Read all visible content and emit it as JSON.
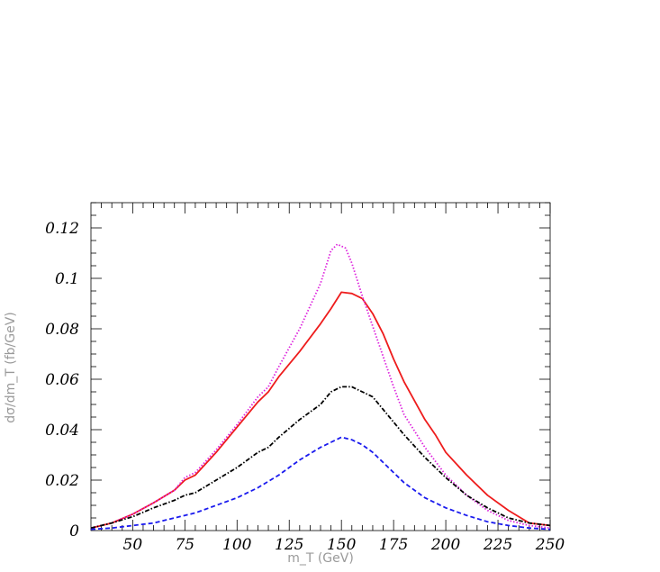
{
  "chart_data": {
    "type": "line",
    "xlabel": "m_T (GeV)",
    "ylabel": "dσ/dm_T (fb/GeV)",
    "xlim": [
      30,
      250
    ],
    "ylim": [
      0,
      0.13
    ],
    "x_ticks": [
      {
        "v": 50,
        "label": "50"
      },
      {
        "v": 75,
        "label": "75"
      },
      {
        "v": 100,
        "label": "100"
      },
      {
        "v": 125,
        "label": "125"
      },
      {
        "v": 150,
        "label": "150"
      },
      {
        "v": 175,
        "label": "175"
      },
      {
        "v": 200,
        "label": "200"
      },
      {
        "v": 225,
        "label": "225"
      },
      {
        "v": 250,
        "label": "250"
      }
    ],
    "y_ticks": [
      {
        "v": 0,
        "label": "0"
      },
      {
        "v": 0.02,
        "label": "0.02"
      },
      {
        "v": 0.04,
        "label": "0.04"
      },
      {
        "v": 0.06,
        "label": "0.06"
      },
      {
        "v": 0.08,
        "label": "0.08"
      },
      {
        "v": 0.1,
        "label": "0.1"
      },
      {
        "v": 0.12,
        "label": "0.12"
      }
    ],
    "series": [
      {
        "color": "#ee1c1c",
        "style": "solid",
        "points": [
          [
            30,
            0.001
          ],
          [
            40,
            0.003
          ],
          [
            50,
            0.0065
          ],
          [
            60,
            0.011
          ],
          [
            70,
            0.016
          ],
          [
            75,
            0.02
          ],
          [
            80,
            0.022
          ],
          [
            90,
            0.031
          ],
          [
            100,
            0.041
          ],
          [
            110,
            0.051
          ],
          [
            115,
            0.055
          ],
          [
            120,
            0.061
          ],
          [
            130,
            0.071
          ],
          [
            140,
            0.082
          ],
          [
            145,
            0.088
          ],
          [
            150,
            0.0945
          ],
          [
            155,
            0.094
          ],
          [
            160,
            0.092
          ],
          [
            165,
            0.086
          ],
          [
            170,
            0.078
          ],
          [
            175,
            0.068
          ],
          [
            180,
            0.059
          ],
          [
            190,
            0.044
          ],
          [
            195,
            0.038
          ],
          [
            200,
            0.031
          ],
          [
            210,
            0.022
          ],
          [
            220,
            0.014
          ],
          [
            230,
            0.008
          ],
          [
            240,
            0.003
          ],
          [
            250,
            0.002
          ]
        ]
      },
      {
        "color": "#dd22dd",
        "style": "dotted",
        "points": [
          [
            30,
            0.001
          ],
          [
            40,
            0.003
          ],
          [
            50,
            0.0065
          ],
          [
            60,
            0.011
          ],
          [
            70,
            0.016
          ],
          [
            75,
            0.021
          ],
          [
            80,
            0.023
          ],
          [
            90,
            0.032
          ],
          [
            100,
            0.042
          ],
          [
            110,
            0.053
          ],
          [
            115,
            0.057
          ],
          [
            120,
            0.065
          ],
          [
            130,
            0.08
          ],
          [
            140,
            0.098
          ],
          [
            145,
            0.111
          ],
          [
            148,
            0.1135
          ],
          [
            152,
            0.112
          ],
          [
            155,
            0.106
          ],
          [
            160,
            0.093
          ],
          [
            165,
            0.081
          ],
          [
            170,
            0.069
          ],
          [
            175,
            0.057
          ],
          [
            180,
            0.046
          ],
          [
            190,
            0.033
          ],
          [
            200,
            0.022
          ],
          [
            210,
            0.014
          ],
          [
            220,
            0.008
          ],
          [
            230,
            0.004
          ],
          [
            240,
            0.002
          ],
          [
            250,
            0.001
          ]
        ]
      },
      {
        "color": "#000000",
        "style": "dashdot",
        "points": [
          [
            30,
            0.001
          ],
          [
            40,
            0.003
          ],
          [
            50,
            0.0055
          ],
          [
            60,
            0.009
          ],
          [
            70,
            0.012
          ],
          [
            75,
            0.014
          ],
          [
            80,
            0.015
          ],
          [
            90,
            0.02
          ],
          [
            100,
            0.025
          ],
          [
            110,
            0.031
          ],
          [
            115,
            0.033
          ],
          [
            120,
            0.037
          ],
          [
            130,
            0.044
          ],
          [
            140,
            0.05
          ],
          [
            145,
            0.055
          ],
          [
            150,
            0.057
          ],
          [
            155,
            0.057
          ],
          [
            160,
            0.055
          ],
          [
            165,
            0.053
          ],
          [
            170,
            0.048
          ],
          [
            175,
            0.043
          ],
          [
            180,
            0.038
          ],
          [
            190,
            0.029
          ],
          [
            200,
            0.021
          ],
          [
            210,
            0.014
          ],
          [
            220,
            0.009
          ],
          [
            230,
            0.005
          ],
          [
            240,
            0.003
          ],
          [
            250,
            0.002
          ]
        ]
      },
      {
        "color": "#1a1aee",
        "style": "dashed",
        "points": [
          [
            30,
            0.0005
          ],
          [
            40,
            0.001
          ],
          [
            50,
            0.002
          ],
          [
            60,
            0.003
          ],
          [
            70,
            0.005
          ],
          [
            80,
            0.007
          ],
          [
            90,
            0.01
          ],
          [
            100,
            0.013
          ],
          [
            110,
            0.017
          ],
          [
            120,
            0.022
          ],
          [
            130,
            0.028
          ],
          [
            140,
            0.033
          ],
          [
            145,
            0.035
          ],
          [
            150,
            0.037
          ],
          [
            155,
            0.036
          ],
          [
            160,
            0.034
          ],
          [
            165,
            0.031
          ],
          [
            170,
            0.027
          ],
          [
            175,
            0.023
          ],
          [
            180,
            0.019
          ],
          [
            190,
            0.013
          ],
          [
            200,
            0.009
          ],
          [
            210,
            0.006
          ],
          [
            220,
            0.0035
          ],
          [
            230,
            0.002
          ],
          [
            240,
            0.001
          ],
          [
            250,
            0.0005
          ]
        ]
      }
    ]
  }
}
